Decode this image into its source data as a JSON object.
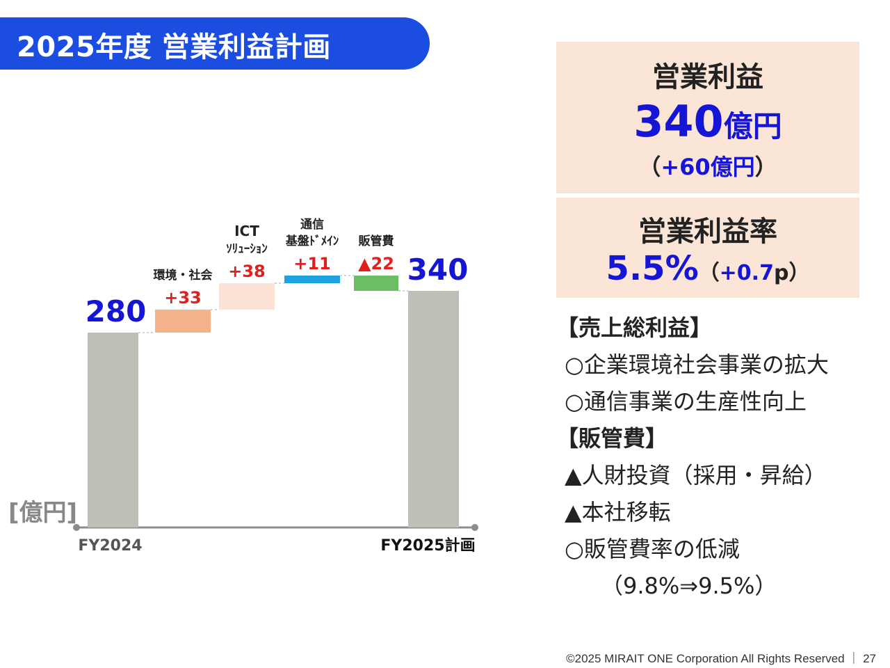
{
  "header": {
    "title": "2025年度 営業利益計画"
  },
  "chart_data": {
    "type": "waterfall",
    "unit_label": "[億円]",
    "start": {
      "label": "FY2024",
      "value": 280,
      "value_label": "280"
    },
    "end": {
      "label": "FY2025計画",
      "value": 340,
      "value_label": "340"
    },
    "steps": [
      {
        "lines": [
          "環境・社会"
        ],
        "value": 33,
        "value_label": "+33",
        "color": "#f2b38a"
      },
      {
        "lines": [
          "ICT",
          "ｿﾘｭｰｼｮﾝ"
        ],
        "value": 38,
        "value_label": "+38",
        "color": "#fce3d5"
      },
      {
        "lines": [
          "通信",
          "基盤ﾄﾞﾒｲﾝ"
        ],
        "value": 11,
        "value_label": "+11",
        "color": "#1fa3e0"
      },
      {
        "lines": [
          "販管費"
        ],
        "value": -22,
        "value_label": "▲22",
        "color": "#6dbd63"
      }
    ],
    "colors": {
      "total_bar": "#bfbfb8",
      "total_label": "#1515d6",
      "delta_label": "#e0201c",
      "axis": "#8c8c8c"
    }
  },
  "kpi": {
    "op_title": "営業利益",
    "op_value": "340",
    "op_unit": "億円",
    "op_delta_open": "（",
    "op_delta": "+60億円",
    "op_delta_close": "）",
    "margin_title": "営業利益率",
    "margin_value": "5.5%",
    "margin_delta_open": "（",
    "margin_delta": "+0.7",
    "margin_delta_suffix": "p",
    "margin_delta_close": "）"
  },
  "notes": [
    {
      "text": "【売上総利益】",
      "style": "head"
    },
    {
      "text": "○企業環境社会事業の拡大",
      "style": "indent1"
    },
    {
      "text": "○通信事業の生産性向上",
      "style": "indent1"
    },
    {
      "text": "【販管費】",
      "style": "head"
    },
    {
      "text": "▲人財投資（採用・昇給）",
      "style": "indent1"
    },
    {
      "text": "▲本社移転",
      "style": "indent1"
    },
    {
      "text": "○販管費率の低減",
      "style": "indent1"
    },
    {
      "text": "（9.8%⇒9.5%）",
      "style": "indent2"
    }
  ],
  "footer": {
    "copyright": "©2025 MIRAIT ONE Corporation All Rights Reserved ｜ 27"
  }
}
